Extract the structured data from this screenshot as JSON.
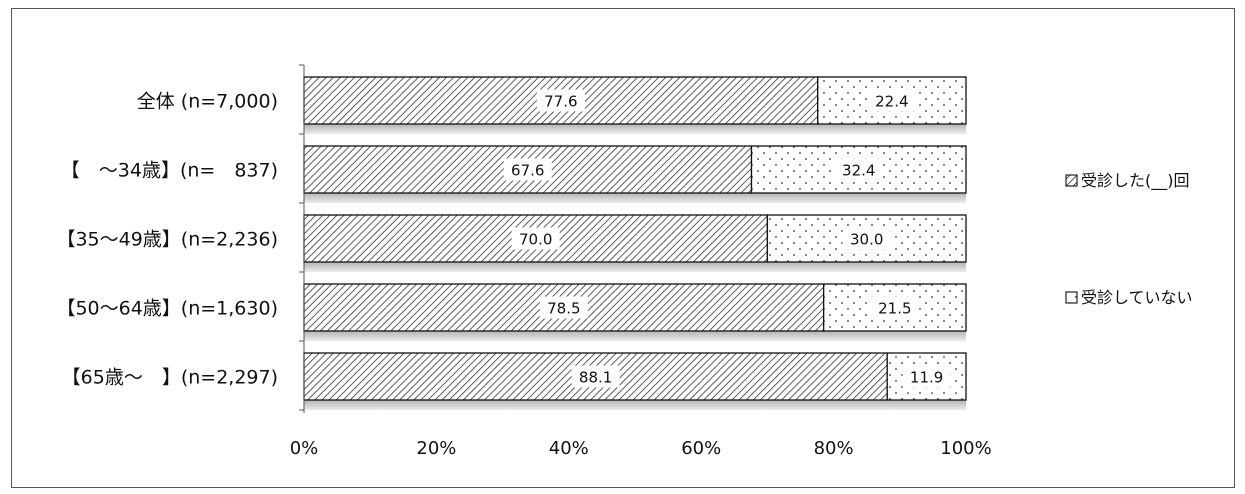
{
  "chart_data": {
    "type": "bar",
    "orientation": "horizontal",
    "stacked": "percent",
    "categories": [
      "全体 (n=7,000)",
      "【　～34歳】(n=　837)",
      "【35～49歳】(n=2,236)",
      "【50～64歳】(n=1,630)",
      "【65歳～　】(n=2,297)"
    ],
    "series": [
      {
        "name": "受診した(__)回",
        "pattern": "diagonal-hatch",
        "values": [
          77.6,
          67.6,
          70.0,
          78.5,
          88.1
        ],
        "labels": [
          "77.6",
          "67.6",
          "70.0",
          "78.5",
          "88.1"
        ]
      },
      {
        "name": "受診していない",
        "pattern": "dots",
        "values": [
          22.4,
          32.4,
          30.0,
          21.5,
          11.9
        ],
        "labels": [
          "22.4",
          "32.4",
          "30.0",
          "21.5",
          "11.9"
        ]
      }
    ],
    "x_ticks": [
      "0%",
      "20%",
      "40%",
      "60%",
      "80%",
      "100%"
    ],
    "xlim": [
      0,
      100
    ],
    "grid": false,
    "legend_position": "right",
    "legend_symbols": [
      "⊠",
      "□"
    ]
  }
}
